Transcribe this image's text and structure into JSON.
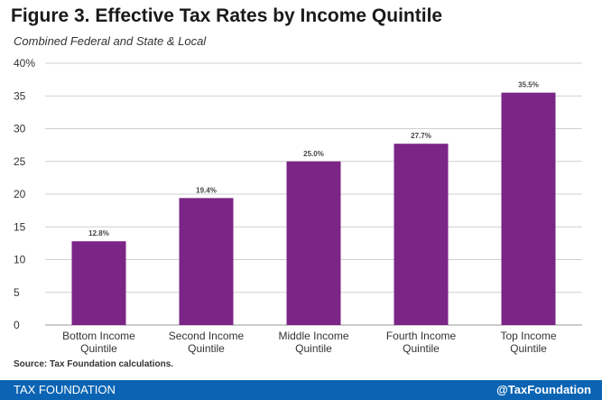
{
  "header": {
    "title": "Figure 3. Effective Tax Rates by Income Quintile",
    "subtitle": "Combined Federal and State & Local"
  },
  "chart_data": {
    "type": "bar",
    "categories": [
      [
        "Bottom Income",
        "Quintile"
      ],
      [
        "Second Income",
        "Quintile"
      ],
      [
        "Middle Income",
        "Quintile"
      ],
      [
        "Fourth Income",
        "Quintile"
      ],
      [
        "Top Income",
        "Quintile"
      ]
    ],
    "values": [
      12.8,
      19.4,
      25.0,
      27.7,
      35.5
    ],
    "data_labels": [
      "12.8%",
      "19.4%",
      "25.0%",
      "27.7%",
      "35.5%"
    ],
    "yticks": [
      "0",
      "5",
      "10",
      "15",
      "20",
      "25",
      "30",
      "35",
      "40%"
    ],
    "ylim": [
      0,
      40
    ],
    "grid": true,
    "bar_color": "#7b2586",
    "grid_color": "#d0d0d0"
  },
  "source": "Source: Tax Foundation calculations.",
  "footer": {
    "left": "TAX FOUNDATION",
    "right": "@TaxFoundation",
    "color": "#0b64b3"
  }
}
